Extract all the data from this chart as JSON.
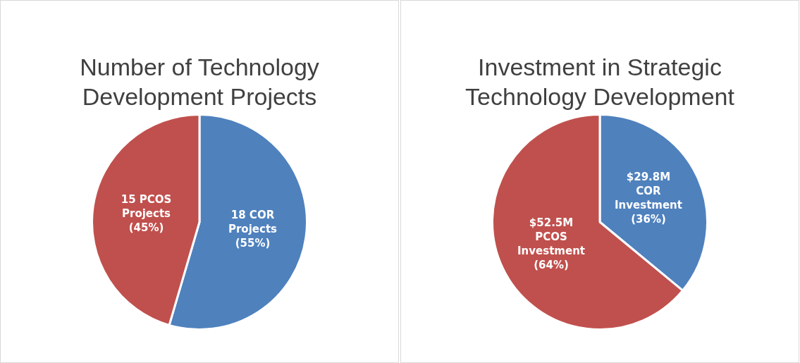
{
  "chart_data": [
    {
      "type": "pie",
      "title": "Number of Technology Development Projects",
      "categories": [
        null,
        null
      ],
      "values": [
        18,
        15
      ],
      "value_labels": [
        "18 COR Projects (55%)",
        "15 PCOS Projects (45%)"
      ],
      "colors": [
        "#4f81bd",
        "#c0504d"
      ],
      "legend": false
    },
    {
      "type": "pie",
      "title": "Investment in Strategic Technology Development",
      "categories": [
        null,
        null
      ],
      "values": [
        36,
        64
      ],
      "value_labels": [
        "$29.8M COR Investment (36%)",
        "$52.5M PCOS Investment (64%)"
      ],
      "colors": [
        "#4f81bd",
        "#c0504d"
      ],
      "legend": false
    }
  ]
}
